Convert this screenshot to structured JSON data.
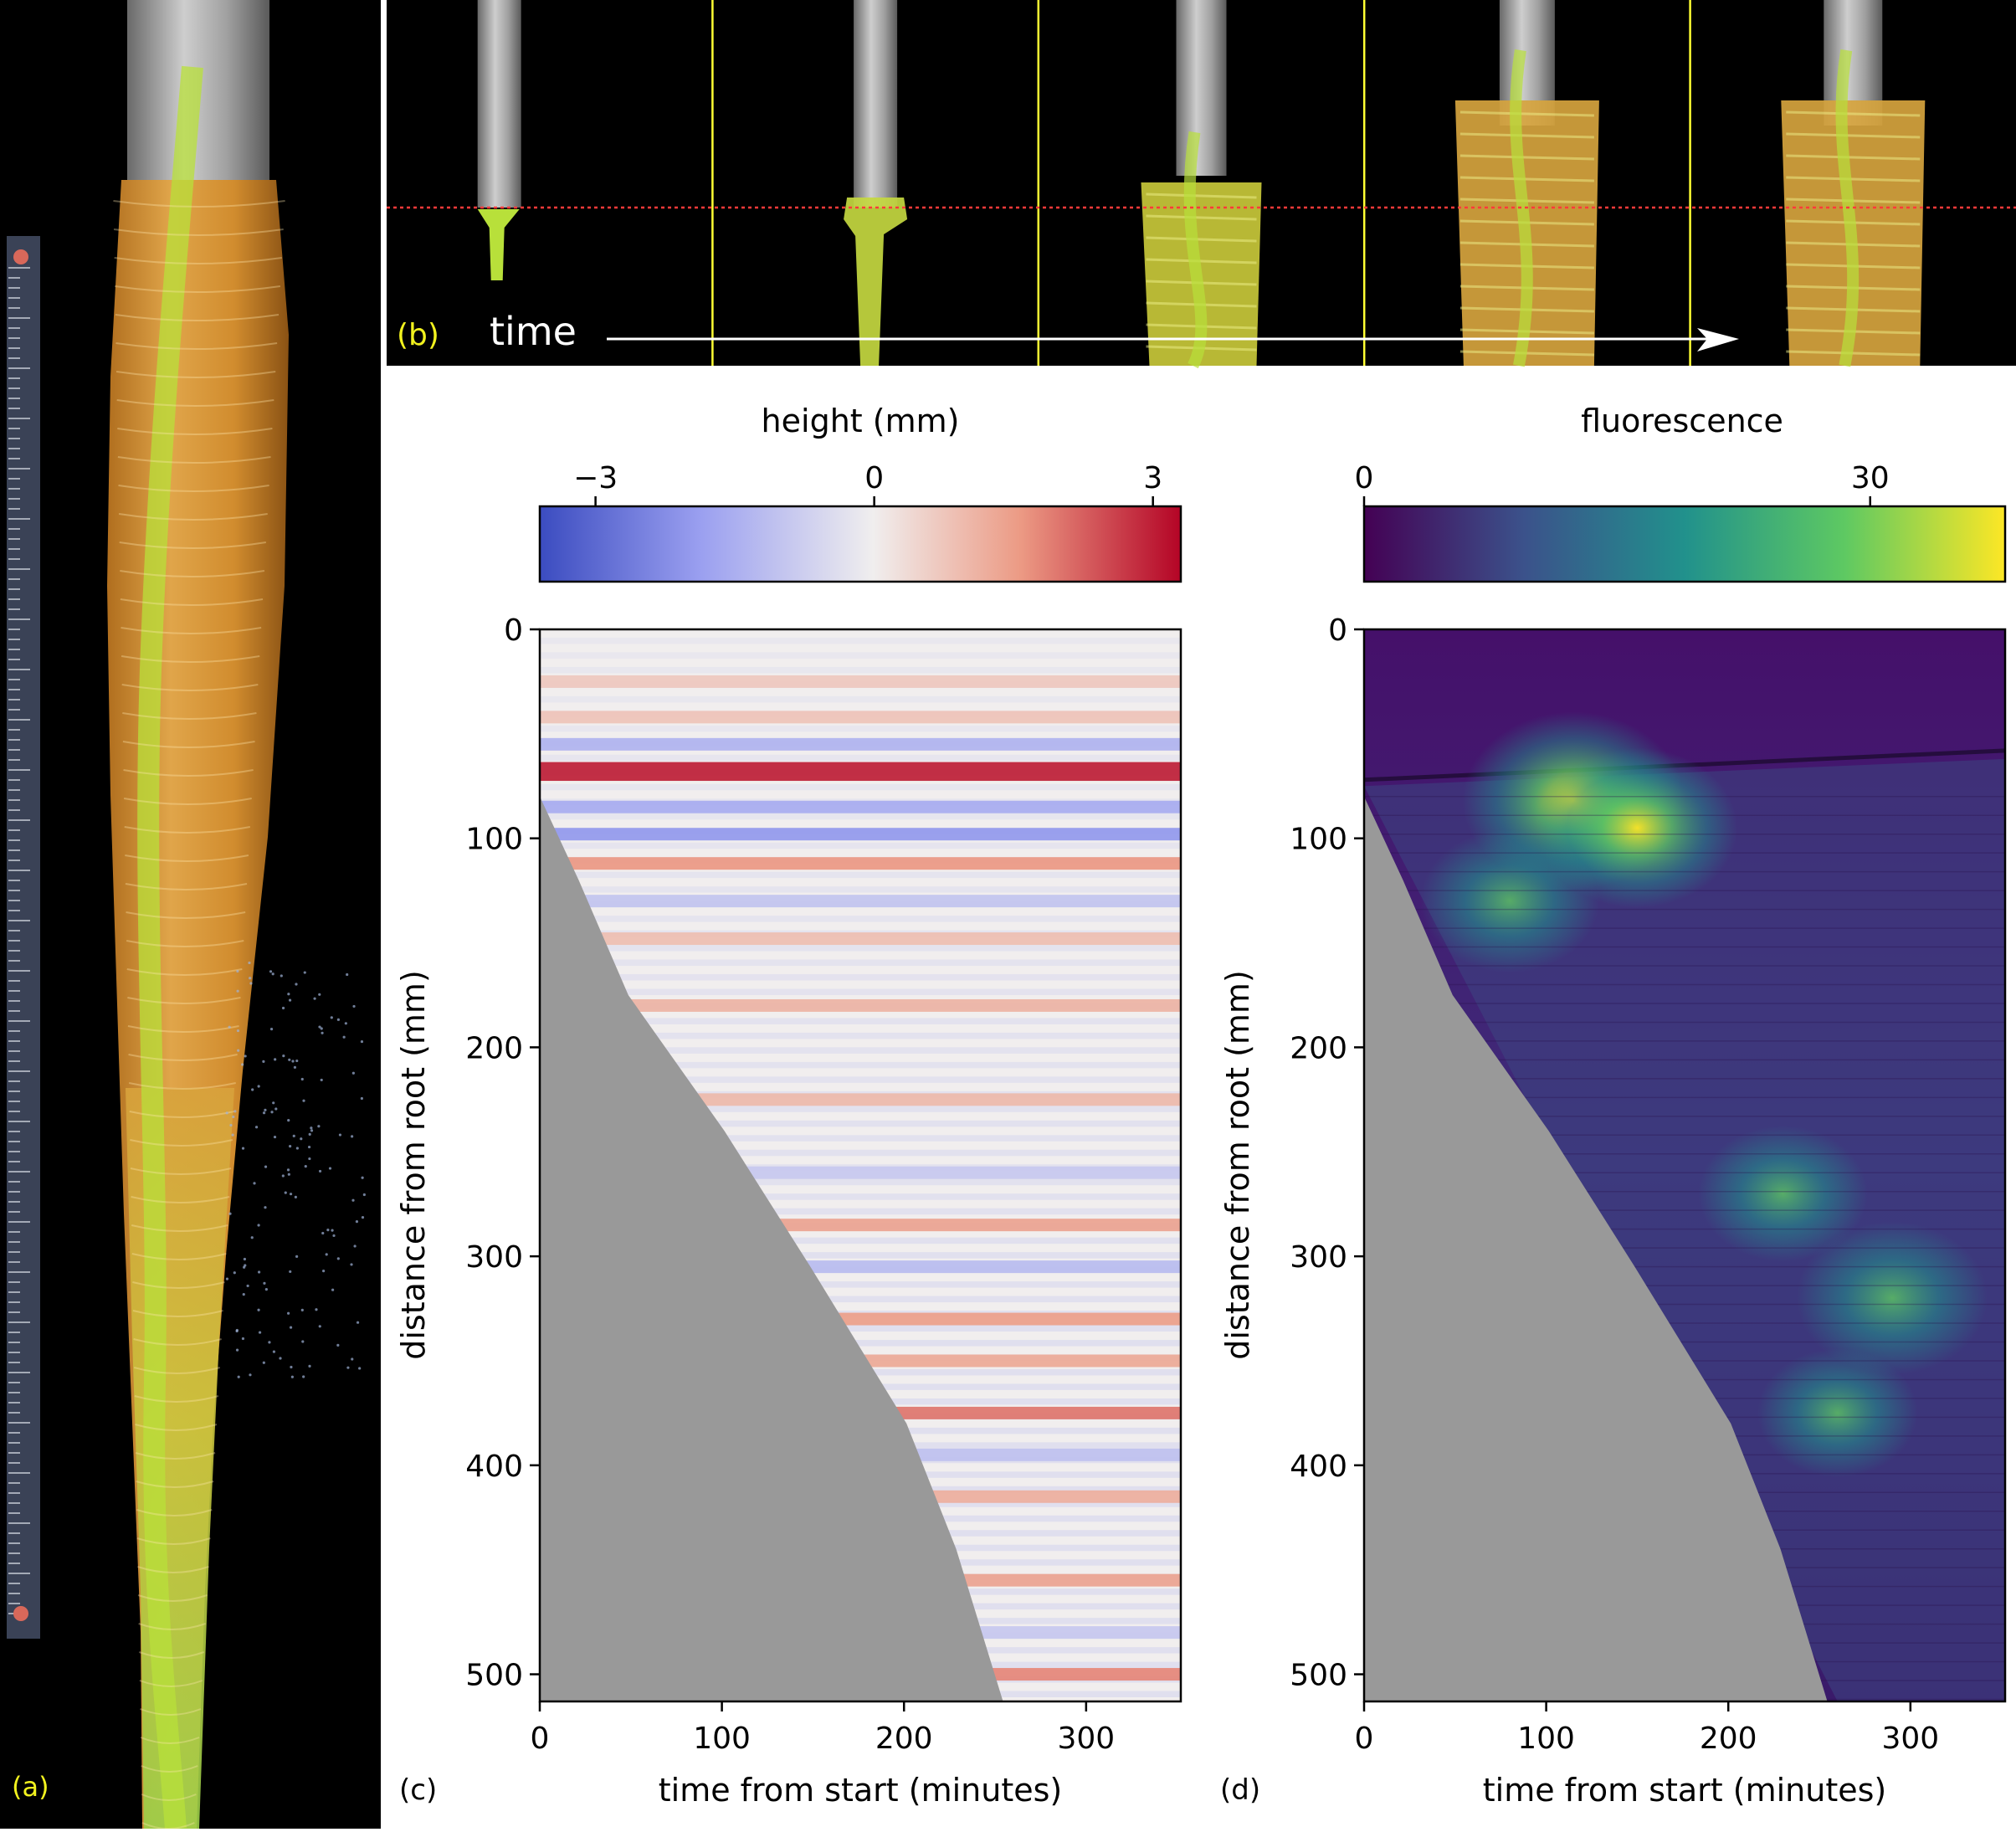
{
  "panel_labels": {
    "a": "(a)",
    "b": "(b)",
    "c": "(c)",
    "d": "(d)"
  },
  "panel_b": {
    "arrow_label": "time",
    "frame_count": 5
  },
  "colors": {
    "panel_label_yellow": "#f2f21e",
    "frame_divider": "#ffff33",
    "reference_line": "#ff3a3a",
    "masked_region": "#999999",
    "ice_orange": "#d89a3c",
    "dye_green": "#b8e03a"
  },
  "chart_data": [
    {
      "type": "heatmap",
      "panel": "(c)",
      "xlabel": "time from start (minutes)",
      "ylabel": "distance from root (mm)",
      "xlim": [
        0,
        352
      ],
      "ylim": [
        0,
        513
      ],
      "y_inverted": true,
      "xticks": [
        0,
        100,
        200,
        300
      ],
      "yticks": [
        0,
        100,
        200,
        300,
        400,
        500
      ],
      "colorbar": {
        "label": "height (mm)",
        "range": [
          -3.6,
          3.3
        ],
        "ticks": [
          -3,
          0,
          3
        ],
        "tick_labels": [
          "−3",
          "0",
          "3"
        ],
        "colormap": "coolwarm"
      },
      "masked_boundary": {
        "description": "grey region where icicle does not yet exist (time, distance)",
        "points": [
          [
            0,
            80
          ],
          [
            20,
            120
          ],
          [
            50,
            175
          ],
          [
            100,
            240
          ],
          [
            150,
            305
          ],
          [
            200,
            380
          ],
          [
            230,
            440
          ],
          [
            253,
            513
          ]
        ]
      },
      "dominant_bands": [
        {
          "distance": 25,
          "value": 0.7
        },
        {
          "distance": 42,
          "value": 0.8
        },
        {
          "distance": 55,
          "value": -1.4
        },
        {
          "distance": 68,
          "value": 3.0
        },
        {
          "distance": 85,
          "value": -1.6
        },
        {
          "distance": 98,
          "value": -2.0
        },
        {
          "distance": 112,
          "value": 1.6
        },
        {
          "distance": 130,
          "value": -1.0
        },
        {
          "distance": 148,
          "value": 0.9
        },
        {
          "distance": 180,
          "value": 1.1
        },
        {
          "distance": 225,
          "value": 1.0
        },
        {
          "distance": 260,
          "value": -0.9
        },
        {
          "distance": 285,
          "value": 1.4
        },
        {
          "distance": 305,
          "value": -1.2
        },
        {
          "distance": 330,
          "value": 1.5
        },
        {
          "distance": 350,
          "value": 1.3
        },
        {
          "distance": 375,
          "value": 2.0
        },
        {
          "distance": 395,
          "value": -1.1
        },
        {
          "distance": 415,
          "value": 1.2
        },
        {
          "distance": 455,
          "value": 1.4
        },
        {
          "distance": 480,
          "value": -0.9
        },
        {
          "distance": 500,
          "value": 1.8
        }
      ]
    },
    {
      "type": "heatmap",
      "panel": "(d)",
      "xlabel": "time from start (minutes)",
      "ylabel": "distance from root (mm)",
      "xlim": [
        0,
        352
      ],
      "ylim": [
        0,
        513
      ],
      "y_inverted": true,
      "xticks": [
        0,
        100,
        200,
        300
      ],
      "yticks": [
        0,
        100,
        200,
        300,
        400,
        500
      ],
      "colorbar": {
        "label": "fluorescence",
        "range": [
          0,
          38
        ],
        "ticks": [
          0,
          30
        ],
        "tick_labels": [
          "0",
          "30"
        ],
        "colormap": "viridis"
      },
      "masked_boundary": {
        "description": "grey region where icicle does not yet exist (time, distance)",
        "points": [
          [
            0,
            80
          ],
          [
            20,
            120
          ],
          [
            50,
            175
          ],
          [
            100,
            240
          ],
          [
            150,
            305
          ],
          [
            200,
            380
          ],
          [
            230,
            440
          ],
          [
            253,
            513
          ]
        ]
      },
      "hotspots": [
        {
          "time": 115,
          "distance": 82,
          "value": 34
        },
        {
          "time": 150,
          "distance": 95,
          "value": 27
        },
        {
          "time": 80,
          "distance": 130,
          "value": 20
        },
        {
          "time": 230,
          "distance": 270,
          "value": 17
        },
        {
          "time": 290,
          "distance": 320,
          "value": 24
        },
        {
          "time": 260,
          "distance": 375,
          "value": 14
        }
      ]
    }
  ]
}
